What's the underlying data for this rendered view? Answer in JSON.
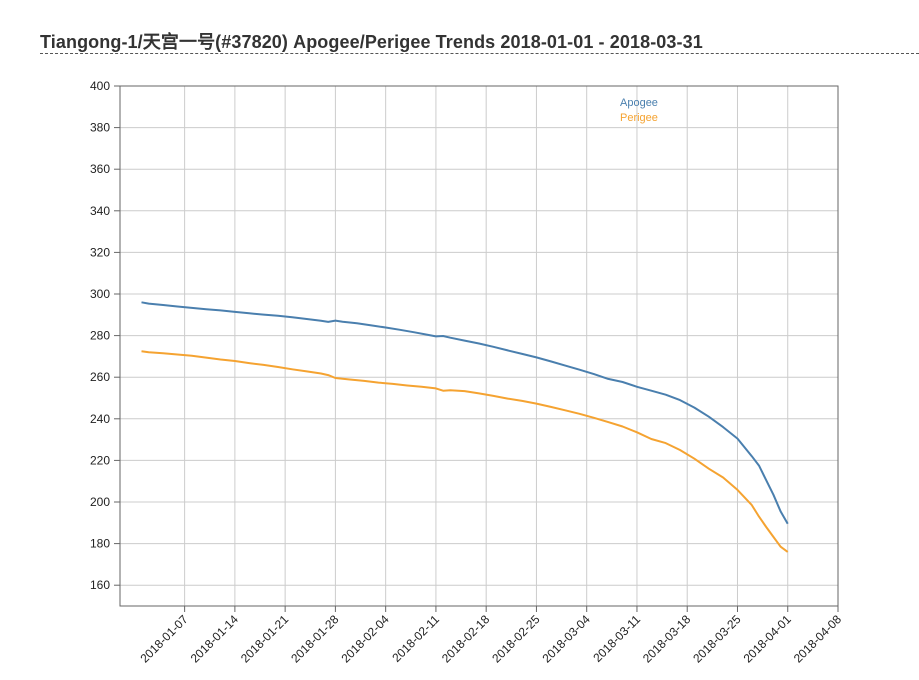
{
  "page": {
    "title": "Tiangong-1/天宫一号(#37820) Apogee/Perigee Trends 2018-01-01 - 2018-03-31"
  },
  "chart_data": {
    "type": "line",
    "title": "Tiangong-1/天宫一号(#37820) Apogee/Perigee Trends 2018-01-01 - 2018-03-31",
    "xlabel": "",
    "ylabel": "",
    "x_axis_type": "date",
    "xlim": [
      "2017-12-29",
      "2018-04-08"
    ],
    "ylim": [
      150,
      400
    ],
    "y_ticks": [
      160,
      180,
      200,
      220,
      240,
      260,
      280,
      300,
      320,
      340,
      360,
      380,
      400
    ],
    "x_ticks": [
      "2018-01-07",
      "2018-01-14",
      "2018-01-21",
      "2018-01-28",
      "2018-02-04",
      "2018-02-11",
      "2018-02-18",
      "2018-02-25",
      "2018-03-04",
      "2018-03-11",
      "2018-03-18",
      "2018-03-25",
      "2018-04-01",
      "2018-04-08"
    ],
    "grid": true,
    "legend_position": "top-right",
    "series": [
      {
        "name": "Apogee",
        "color": "#4a7fae",
        "points": [
          [
            "2018-01-01",
            296
          ],
          [
            "2018-01-02",
            295.4
          ],
          [
            "2018-01-04",
            294.7
          ],
          [
            "2018-01-06",
            294.0
          ],
          [
            "2018-01-08",
            293.3
          ],
          [
            "2018-01-10",
            292.7
          ],
          [
            "2018-01-12",
            292.1
          ],
          [
            "2018-01-14",
            291.4
          ],
          [
            "2018-01-16",
            290.7
          ],
          [
            "2018-01-18",
            290.1
          ],
          [
            "2018-01-20",
            289.5
          ],
          [
            "2018-01-22",
            288.8
          ],
          [
            "2018-01-24",
            288.0
          ],
          [
            "2018-01-26",
            287.1
          ],
          [
            "2018-01-27",
            286.6
          ],
          [
            "2018-01-28",
            287.2
          ],
          [
            "2018-01-29",
            286.7
          ],
          [
            "2018-01-31",
            285.9
          ],
          [
            "2018-02-02",
            284.9
          ],
          [
            "2018-02-04",
            283.9
          ],
          [
            "2018-02-06",
            282.8
          ],
          [
            "2018-02-08",
            281.6
          ],
          [
            "2018-02-10",
            280.3
          ],
          [
            "2018-02-11",
            279.6
          ],
          [
            "2018-02-12",
            279.8
          ],
          [
            "2018-02-13",
            279.0
          ],
          [
            "2018-02-15",
            277.6
          ],
          [
            "2018-02-17",
            276.2
          ],
          [
            "2018-02-19",
            274.6
          ],
          [
            "2018-02-21",
            272.9
          ],
          [
            "2018-02-23",
            271.2
          ],
          [
            "2018-02-25",
            269.5
          ],
          [
            "2018-02-27",
            267.6
          ],
          [
            "2018-03-01",
            265.6
          ],
          [
            "2018-03-03",
            263.6
          ],
          [
            "2018-03-05",
            261.5
          ],
          [
            "2018-03-07",
            259.2
          ],
          [
            "2018-03-09",
            257.7
          ],
          [
            "2018-03-11",
            255.4
          ],
          [
            "2018-03-13",
            253.5
          ],
          [
            "2018-03-15",
            251.6
          ],
          [
            "2018-03-17",
            249.0
          ],
          [
            "2018-03-19",
            245.4
          ],
          [
            "2018-03-21",
            241.0
          ],
          [
            "2018-03-23",
            236.0
          ],
          [
            "2018-03-25",
            230.5
          ],
          [
            "2018-03-27",
            222.0
          ],
          [
            "2018-03-28",
            217.5
          ],
          [
            "2018-03-29",
            210.5
          ],
          [
            "2018-03-30",
            203.5
          ],
          [
            "2018-03-31",
            195.5
          ],
          [
            "2018-04-01",
            189.5
          ]
        ]
      },
      {
        "name": "Perigee",
        "color": "#f5a331",
        "points": [
          [
            "2018-01-01",
            272.5
          ],
          [
            "2018-01-02",
            272.0
          ],
          [
            "2018-01-04",
            271.5
          ],
          [
            "2018-01-06",
            270.9
          ],
          [
            "2018-01-08",
            270.3
          ],
          [
            "2018-01-10",
            269.4
          ],
          [
            "2018-01-12",
            268.5
          ],
          [
            "2018-01-14",
            267.8
          ],
          [
            "2018-01-16",
            266.8
          ],
          [
            "2018-01-18",
            265.9
          ],
          [
            "2018-01-20",
            264.9
          ],
          [
            "2018-01-22",
            263.8
          ],
          [
            "2018-01-24",
            262.8
          ],
          [
            "2018-01-26",
            261.8
          ],
          [
            "2018-01-27",
            261.0
          ],
          [
            "2018-01-28",
            259.6
          ],
          [
            "2018-01-30",
            258.9
          ],
          [
            "2018-02-01",
            258.2
          ],
          [
            "2018-02-03",
            257.4
          ],
          [
            "2018-02-05",
            256.8
          ],
          [
            "2018-02-07",
            256.0
          ],
          [
            "2018-02-09",
            255.4
          ],
          [
            "2018-02-11",
            254.6
          ],
          [
            "2018-02-12",
            253.5
          ],
          [
            "2018-02-13",
            253.7
          ],
          [
            "2018-02-15",
            253.3
          ],
          [
            "2018-02-17",
            252.2
          ],
          [
            "2018-02-19",
            251.0
          ],
          [
            "2018-02-21",
            249.7
          ],
          [
            "2018-02-23",
            248.6
          ],
          [
            "2018-02-25",
            247.3
          ],
          [
            "2018-02-27",
            245.7
          ],
          [
            "2018-03-01",
            244.1
          ],
          [
            "2018-03-03",
            242.4
          ],
          [
            "2018-03-05",
            240.5
          ],
          [
            "2018-03-07",
            238.4
          ],
          [
            "2018-03-09",
            236.3
          ],
          [
            "2018-03-11",
            233.5
          ],
          [
            "2018-03-13",
            230.3
          ],
          [
            "2018-03-15",
            228.3
          ],
          [
            "2018-03-17",
            225.0
          ],
          [
            "2018-03-19",
            220.8
          ],
          [
            "2018-03-21",
            216.0
          ],
          [
            "2018-03-23",
            211.8
          ],
          [
            "2018-03-25",
            205.8
          ],
          [
            "2018-03-27",
            198.5
          ],
          [
            "2018-03-28",
            193.0
          ],
          [
            "2018-03-29",
            188.0
          ],
          [
            "2018-03-30",
            183.2
          ],
          [
            "2018-03-31",
            178.5
          ],
          [
            "2018-04-01",
            176.0
          ]
        ]
      }
    ]
  }
}
